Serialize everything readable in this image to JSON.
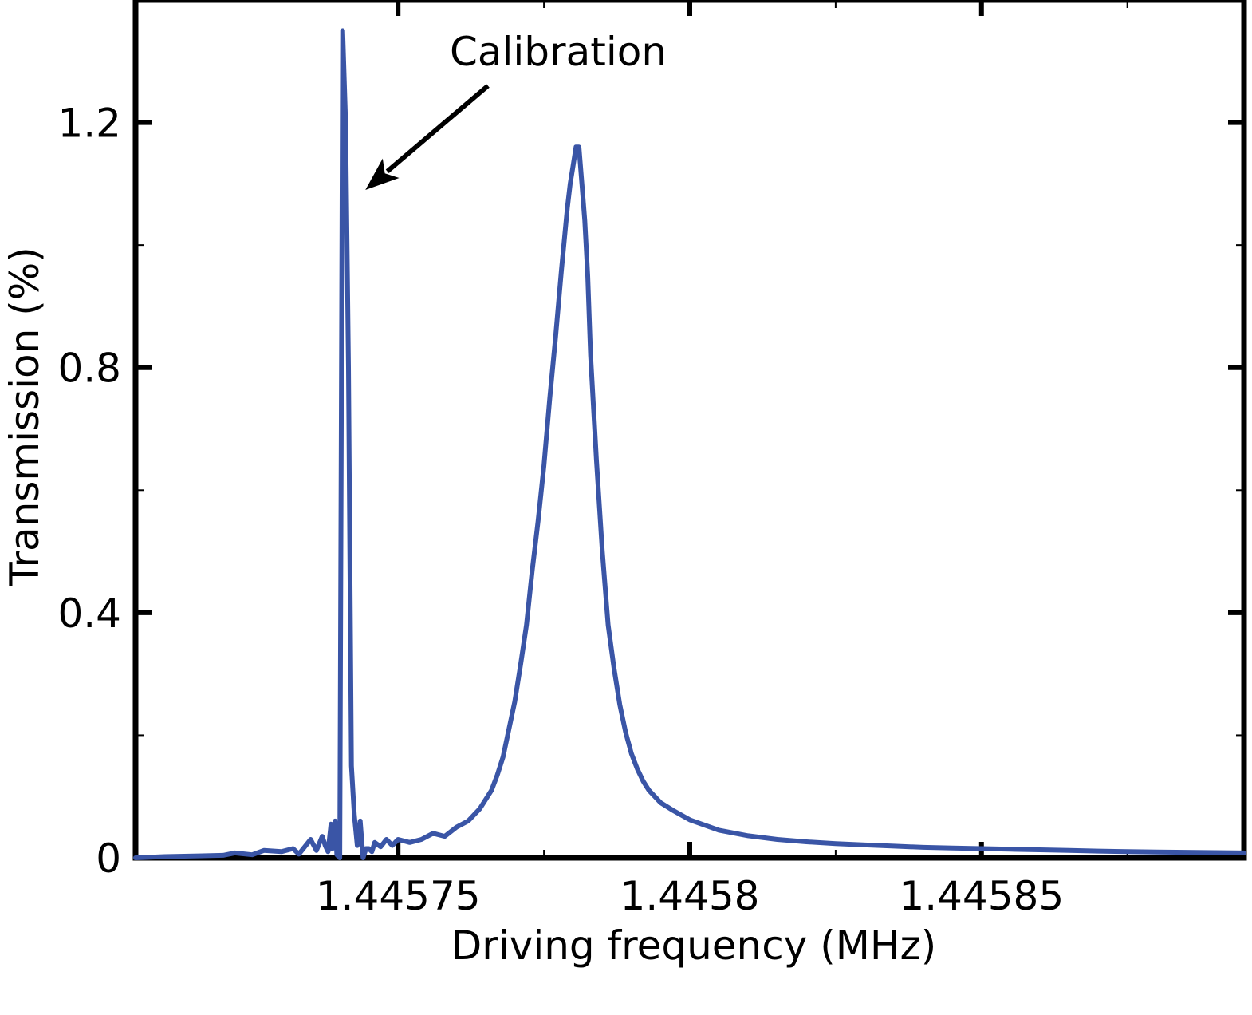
{
  "colors": {
    "series": "#3a55a6",
    "axis": "#000000",
    "background": "#ffffff"
  },
  "chart_data": {
    "type": "line",
    "title": "",
    "xlabel": "Driving frequency (MHz)",
    "ylabel": "Transmission (%)",
    "xlim": [
      1.445705,
      1.445895
    ],
    "ylim": [
      0,
      1.4
    ],
    "xticks": [
      {
        "value": 1.44575,
        "label": "1.44575"
      },
      {
        "value": 1.4458,
        "label": "1.4458"
      },
      {
        "value": 1.44585,
        "label": "1.44585"
      }
    ],
    "xminor": [
      1.445775,
      1.445825,
      1.445875
    ],
    "yticks": [
      {
        "value": 0,
        "label": "0"
      },
      {
        "value": 0.4,
        "label": "0.4"
      },
      {
        "value": 0.8,
        "label": "0.8"
      },
      {
        "value": 1.2,
        "label": "1.2"
      }
    ],
    "yminor": [
      0.2,
      0.6,
      1.0
    ],
    "grid": false,
    "legend": "none",
    "annotations": [
      {
        "text": "Calibration",
        "target": {
          "x": 1.4457444,
          "y": 1.09
        },
        "tail": {
          "x": 1.4457654,
          "y": 1.26
        }
      }
    ],
    "series": [
      {
        "color": "#3a55a6",
        "x": [
          1.445705,
          1.44571,
          1.445715,
          1.44572,
          1.445722,
          1.445725,
          1.445727,
          1.44573,
          1.445732,
          1.445733,
          1.445735,
          1.445736,
          1.445737,
          1.4457375,
          1.445738,
          1.4457385,
          1.4457387,
          1.4457392,
          1.4457395,
          1.44574,
          1.4457405,
          1.445741,
          1.4457415,
          1.445742,
          1.4457425,
          1.445743,
          1.4457435,
          1.445744,
          1.4457445,
          1.445745,
          1.4457455,
          1.445746,
          1.445747,
          1.445748,
          1.445749,
          1.44575,
          1.445752,
          1.445754,
          1.445756,
          1.445758,
          1.44576,
          1.445762,
          1.445764,
          1.445766,
          1.445767,
          1.445768,
          1.445769,
          1.44577,
          1.445771,
          1.445772,
          1.445773,
          1.445774,
          1.445775,
          1.445776,
          1.445777,
          1.445778,
          1.445779,
          1.4457795,
          1.44578,
          1.4457805,
          1.445781,
          1.4457815,
          1.445782,
          1.4457825,
          1.445783,
          1.445784,
          1.445785,
          1.445786,
          1.445787,
          1.445788,
          1.445789,
          1.44579,
          1.445791,
          1.445792,
          1.445793,
          1.445794,
          1.445795,
          1.445797,
          1.4458,
          1.445805,
          1.44581,
          1.445815,
          1.44582,
          1.445825,
          1.44583,
          1.445835,
          1.44584,
          1.445845,
          1.44585,
          1.445855,
          1.44586,
          1.445865,
          1.44587,
          1.445875,
          1.44588,
          1.445885,
          1.44589,
          1.445895
        ],
        "y": [
          0.0,
          0.002,
          0.003,
          0.004,
          0.008,
          0.005,
          0.012,
          0.01,
          0.015,
          0.006,
          0.03,
          0.012,
          0.035,
          0.02,
          0.01,
          0.055,
          0.015,
          0.06,
          0.005,
          0.0,
          1.35,
          1.2,
          0.8,
          0.15,
          0.07,
          0.02,
          0.06,
          0.0,
          0.015,
          0.015,
          0.01,
          0.025,
          0.018,
          0.03,
          0.02,
          0.03,
          0.025,
          0.03,
          0.04,
          0.035,
          0.05,
          0.06,
          0.08,
          0.11,
          0.135,
          0.165,
          0.21,
          0.255,
          0.315,
          0.38,
          0.47,
          0.55,
          0.64,
          0.75,
          0.85,
          0.96,
          1.06,
          1.1,
          1.13,
          1.16,
          1.16,
          1.1,
          1.04,
          0.95,
          0.82,
          0.65,
          0.5,
          0.38,
          0.31,
          0.25,
          0.205,
          0.17,
          0.145,
          0.125,
          0.11,
          0.1,
          0.09,
          0.078,
          0.062,
          0.045,
          0.036,
          0.03,
          0.026,
          0.023,
          0.021,
          0.019,
          0.017,
          0.016,
          0.015,
          0.014,
          0.013,
          0.012,
          0.011,
          0.01,
          0.0095,
          0.009,
          0.0085,
          0.008
        ]
      }
    ]
  }
}
